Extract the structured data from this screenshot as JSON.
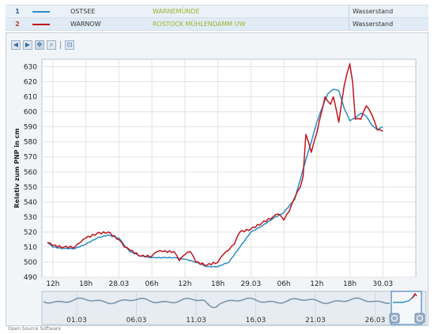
{
  "legend": [
    {
      "num": "1",
      "water": "OSTSEE",
      "station": "WARNEMÜNDE",
      "param": "Wasserstand",
      "color": "#2a8cc7"
    },
    {
      "num": "2",
      "water": "WARNOW",
      "station": "ROSTOCK MÜHLENDAMM UW",
      "param": "Wasserstand",
      "color": "#c0141c"
    }
  ],
  "toolbar": [
    {
      "name": "back-arrow-icon",
      "glyph": "◀"
    },
    {
      "name": "forward-arrow-icon",
      "glyph": "▶"
    },
    {
      "name": "pan-icon",
      "glyph": "✥"
    },
    {
      "name": "zoom-icon",
      "glyph": "⌕"
    },
    {
      "name": "fit-icon",
      "glyph": "⊡"
    }
  ],
  "footer": "Open Source Software",
  "chart_data": {
    "type": "line",
    "ylabel": "Relativ zum PNP in cm",
    "ylim": [
      490,
      635
    ],
    "yticks": [
      490,
      500,
      510,
      520,
      530,
      540,
      550,
      560,
      570,
      580,
      590,
      600,
      610,
      620,
      630
    ],
    "xlim_hours": [
      -2,
      66
    ],
    "xticks": [
      "12h",
      "18h",
      "28.03",
      "06h",
      "12h",
      "18h",
      "29.03",
      "06h",
      "12h",
      "18h",
      "30.03"
    ],
    "grid": true,
    "series": [
      {
        "name": "OSTSEE / WARNEMÜNDE",
        "color": "#2a8cc7",
        "x": [
          -1,
          0,
          2,
          4,
          6,
          8,
          10,
          12,
          13,
          14,
          16,
          18,
          20,
          22,
          24,
          26,
          28,
          30,
          32,
          34,
          36,
          38,
          40,
          42,
          44,
          45,
          46,
          47,
          48,
          49,
          50,
          51,
          52,
          53,
          54,
          55,
          56,
          57,
          58,
          59,
          60
        ],
        "y": [
          513,
          510,
          509,
          509,
          512,
          516,
          518,
          516,
          511,
          507,
          504,
          503,
          503,
          503,
          502,
          500,
          497,
          497,
          500,
          510,
          520,
          524,
          529,
          533,
          542,
          555,
          568,
          580,
          593,
          603,
          612,
          615,
          614,
          602,
          594,
          596,
          599,
          597,
          591,
          588,
          590
        ]
      },
      {
        "name": "WARNOW / ROSTOCK MÜHLENDAMM UW",
        "color": "#c0141c",
        "x": [
          -1,
          0,
          2,
          4,
          5,
          6,
          8,
          10,
          12,
          13,
          14,
          16,
          18,
          19,
          20,
          22,
          23,
          24,
          25,
          26,
          28,
          30,
          31,
          32,
          33,
          34,
          36,
          38,
          40,
          41,
          42,
          43,
          44,
          45,
          45.5,
          46,
          47,
          48,
          49,
          49.5,
          50,
          50.5,
          51,
          52,
          53,
          54,
          54.5,
          55,
          56,
          57,
          58,
          59,
          60
        ],
        "y": [
          513,
          511,
          510,
          510,
          513,
          516,
          519,
          520,
          515,
          510,
          508,
          504,
          504,
          507,
          507,
          507,
          501,
          505,
          507,
          500,
          498,
          500,
          505,
          508,
          512,
          520,
          522,
          526,
          530,
          532,
          528,
          534,
          543,
          550,
          557,
          585,
          573,
          586,
          602,
          610,
          607,
          605,
          610,
          593,
          618,
          632,
          620,
          595,
          595,
          604,
          598,
          588,
          587
        ]
      }
    ],
    "overview": {
      "xticks": [
        "01.03",
        "06.03",
        "11.03",
        "16.03",
        "21.03",
        "26.03"
      ]
    }
  }
}
